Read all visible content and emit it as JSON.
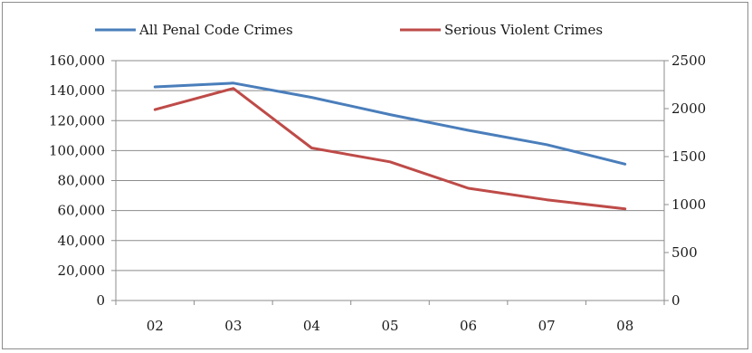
{
  "chart_data": {
    "type": "line",
    "categories": [
      "02",
      "03",
      "04",
      "05",
      "06",
      "07",
      "08"
    ],
    "series": [
      {
        "name": "All Penal Code Crimes",
        "axis": "left",
        "color": "#4a7ebb",
        "values": [
          142500,
          145000,
          135500,
          124000,
          113500,
          104000,
          91000
        ]
      },
      {
        "name": "Serious Violent Crimes",
        "axis": "right",
        "color": "#be4b48",
        "values": [
          1990,
          2210,
          1590,
          1445,
          1170,
          1050,
          955
        ]
      }
    ],
    "left_axis": {
      "min": 0,
      "max": 160000,
      "step": 20000,
      "tick_labels": [
        "0",
        "20,000",
        "40,000",
        "60,000",
        "80,000",
        "100,000",
        "120,000",
        "140,000",
        "160,000"
      ]
    },
    "right_axis": {
      "min": 0,
      "max": 2500,
      "step": 500,
      "tick_labels": [
        "0",
        "500",
        "1000",
        "1500",
        "2000",
        "2500"
      ]
    },
    "grid": "horizontal",
    "legend_position": "top"
  }
}
